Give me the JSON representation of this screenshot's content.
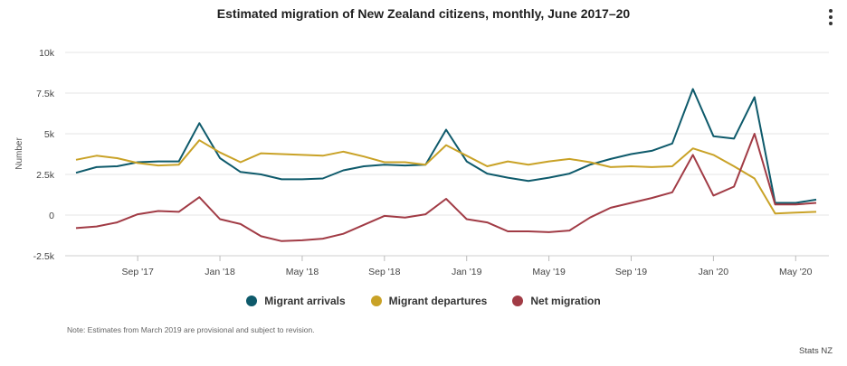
{
  "title": "Estimated migration of New Zealand citizens, monthly, June 2017–20",
  "note": "Note: Estimates from March 2019 are provisional and subject to revision.",
  "credits": "Stats NZ",
  "menu_icon": "more-vertical-icon",
  "chart_data": {
    "type": "line",
    "ylabel": "Number",
    "ylim": [
      -2500,
      10000
    ],
    "yticks": [
      -2500,
      0,
      2500,
      5000,
      7500,
      10000
    ],
    "ytick_labels": [
      "-2.5k",
      "0",
      "2.5k",
      "5k",
      "7.5k",
      "10k"
    ],
    "grid": true,
    "legend_position": "bottom",
    "x_months": [
      "Jun 2017",
      "Jul 2017",
      "Aug 2017",
      "Sep 2017",
      "Oct 2017",
      "Nov 2017",
      "Dec 2017",
      "Jan 2018",
      "Feb 2018",
      "Mar 2018",
      "Apr 2018",
      "May 2018",
      "Jun 2018",
      "Jul 2018",
      "Aug 2018",
      "Sep 2018",
      "Oct 2018",
      "Nov 2018",
      "Dec 2018",
      "Jan 2019",
      "Feb 2019",
      "Mar 2019",
      "Apr 2019",
      "May 2019",
      "Jun 2019",
      "Jul 2019",
      "Aug 2019",
      "Sep 2019",
      "Oct 2019",
      "Nov 2019",
      "Dec 2019",
      "Jan 2020",
      "Feb 2020",
      "Mar 2020",
      "Apr 2020",
      "May 2020",
      "Jun 2020"
    ],
    "x_tick_labels": [
      {
        "month": "Sep 2017",
        "label": "Sep '17"
      },
      {
        "month": "Jan 2018",
        "label": "Jan '18"
      },
      {
        "month": "May 2018",
        "label": "May '18"
      },
      {
        "month": "Sep 2018",
        "label": "Sep '18"
      },
      {
        "month": "Jan 2019",
        "label": "Jan '19"
      },
      {
        "month": "May 2019",
        "label": "May '19"
      },
      {
        "month": "Sep 2019",
        "label": "Sep '19"
      },
      {
        "month": "Jan 2020",
        "label": "Jan '20"
      },
      {
        "month": "May 2020",
        "label": "May '20"
      }
    ],
    "series": [
      {
        "name": "Migrant arrivals",
        "color": "#0e5a6b",
        "values": [
          2600,
          2950,
          3000,
          3250,
          3300,
          3300,
          5650,
          3500,
          2650,
          2500,
          2200,
          2200,
          2250,
          2750,
          3000,
          3100,
          3050,
          3100,
          5250,
          3300,
          2550,
          2300,
          2100,
          2300,
          2550,
          3100,
          3450,
          3750,
          3950,
          4400,
          7750,
          4850,
          4700,
          7250,
          750,
          750,
          950
        ]
      },
      {
        "name": "Migrant departures",
        "color": "#c9a227",
        "values": [
          3400,
          3650,
          3500,
          3200,
          3050,
          3100,
          4600,
          3850,
          3250,
          3800,
          3750,
          3700,
          3650,
          3900,
          3600,
          3250,
          3250,
          3100,
          4300,
          3650,
          3000,
          3300,
          3100,
          3300,
          3450,
          3250,
          2950,
          3000,
          2950,
          3000,
          4100,
          3700,
          3000,
          2250,
          100,
          150,
          200
        ]
      },
      {
        "name": "Net migration",
        "color": "#a13b45",
        "values": [
          -800,
          -700,
          -450,
          50,
          250,
          200,
          1100,
          -250,
          -550,
          -1300,
          -1600,
          -1550,
          -1450,
          -1150,
          -600,
          -50,
          -150,
          50,
          1000,
          -250,
          -450,
          -1000,
          -1000,
          -1050,
          -950,
          -150,
          450,
          750,
          1050,
          1400,
          3700,
          1200,
          1750,
          5000,
          650,
          650,
          750
        ]
      }
    ]
  }
}
